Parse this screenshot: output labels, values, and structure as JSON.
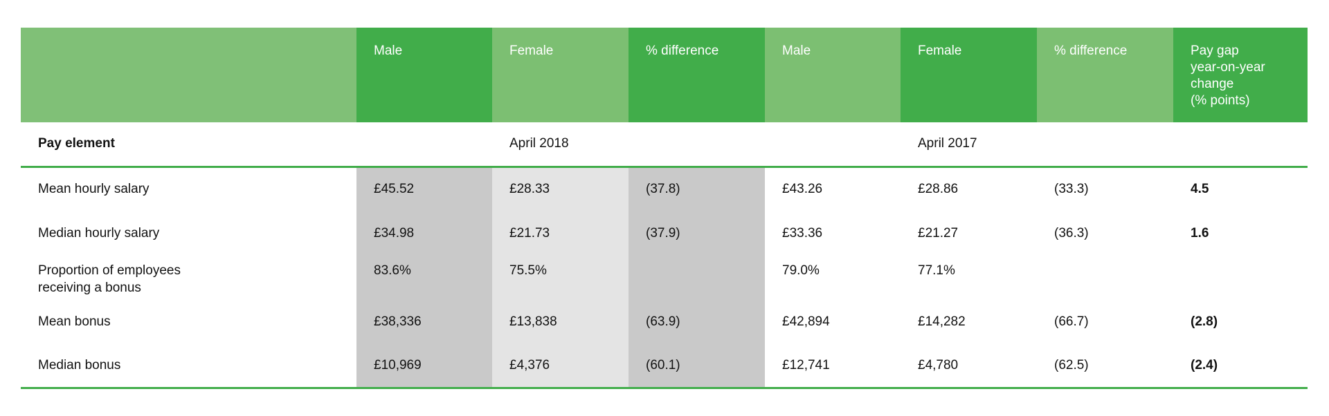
{
  "headers": {
    "blank": "",
    "male_2018": "Male",
    "female_2018": "Female",
    "diff_2018": "% difference",
    "male_2017": "Male",
    "female_2017": "Female",
    "diff_2017": "% difference",
    "change": "Pay gap\nyear-on-year\nchange\n(% points)"
  },
  "subheader": {
    "label": "Pay element",
    "year_2018": "April 2018",
    "year_2017": "April 2017"
  },
  "rows": [
    {
      "label": "Mean hourly salary",
      "m18": "£45.52",
      "f18": "£28.33",
      "d18": "(37.8)",
      "m17": "£43.26",
      "f17": "£28.86",
      "d17": "(33.3)",
      "chg": "4.5"
    },
    {
      "label": "Median hourly salary",
      "m18": "£34.98",
      "f18": "£21.73",
      "d18": "(37.9)",
      "m17": "£33.36",
      "f17": "£21.27",
      "d17": "(36.3)",
      "chg": "1.6"
    },
    {
      "label": "Proportion of employees\nreceiving a bonus",
      "m18": "83.6%",
      "f18": "75.5%",
      "d18": "",
      "m17": "79.0%",
      "f17": "77.1%",
      "d17": "",
      "chg": ""
    },
    {
      "label": "Mean bonus",
      "m18": "£38,336",
      "f18": "£13,838",
      "d18": "(63.9)",
      "m17": "£42,894",
      "f17": "£14,282",
      "d17": "(66.7)",
      "chg": "(2.8)"
    },
    {
      "label": "Median bonus",
      "m18": "£10,969",
      "f18": "£4,376",
      "d18": "(60.1)",
      "m17": "£12,741",
      "f17": "£4,780",
      "d17": "(62.5)",
      "chg": "(2.4)"
    }
  ],
  "colors": {
    "green_dark": "#41ad4a",
    "green_light": "#7cbf72",
    "grey_dark": "#c9c9c9",
    "grey_light": "#e4e4e4"
  }
}
